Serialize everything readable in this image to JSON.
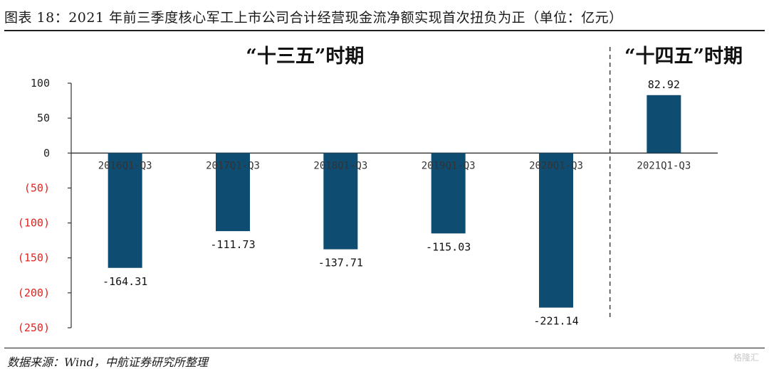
{
  "header": {
    "title": "图表 18：2021 年前三季度核心军工上市公司合计经营现金流净额实现首次扭负为正（单位：亿元）"
  },
  "footer": {
    "source": "数据来源：Wind，中航证券研究所整理",
    "watermark": "格隆汇"
  },
  "colors": {
    "bar": "#0f4c72",
    "positive_tick": "#222222",
    "negative_tick": "#e0241f",
    "axis": "#333333",
    "divider": "#333333"
  },
  "chart_data": {
    "type": "bar",
    "categories": [
      "2016Q1-Q3",
      "2017Q1-Q3",
      "2018Q1-Q3",
      "2019Q1-Q3",
      "2020Q1-Q3",
      "2021Q1-Q3"
    ],
    "values": [
      -164.31,
      -111.73,
      -137.71,
      -115.03,
      -221.14,
      82.92
    ],
    "data_labels": [
      "-164.31",
      "-111.73",
      "-137.71",
      "-115.03",
      "-221.14",
      "82.92"
    ],
    "ylim": [
      -250,
      100
    ],
    "y_ticks": [
      100,
      50,
      0,
      -50,
      -100,
      -150,
      -200,
      -250
    ],
    "y_tick_labels": [
      "100",
      "50",
      "0",
      "(50)",
      "(100)",
      "(150)",
      "(200)",
      "(250)"
    ],
    "annotations": [
      "“十三五”时期",
      "“十四五”时期"
    ],
    "divider_after_index": 4
  }
}
